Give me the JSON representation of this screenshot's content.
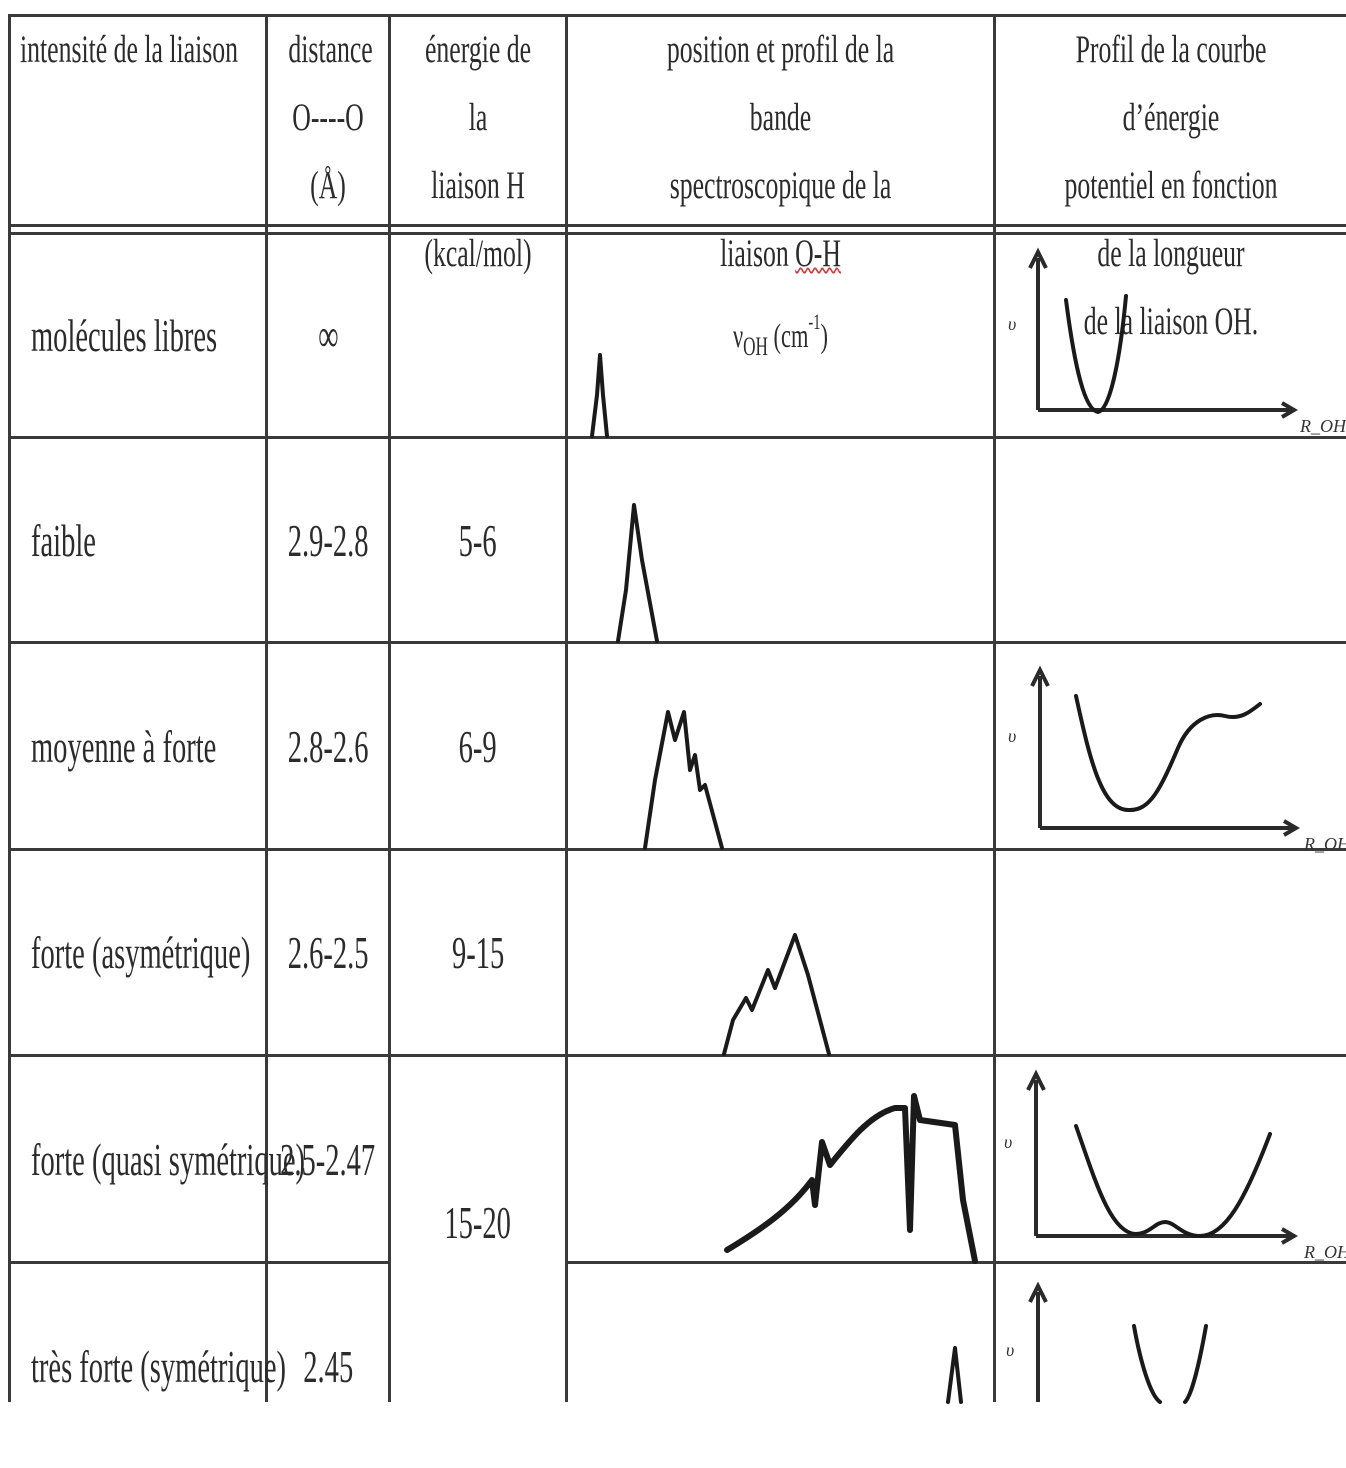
{
  "headers": {
    "intensity": "intensité de la liaison",
    "distance": [
      "distance",
      "O----O",
      "(Å)"
    ],
    "energy": [
      "énergie de la",
      "liaison H",
      "(kcal/mol)"
    ],
    "band": [
      "position et profil de la bande",
      "spectroscopique de la liaison O-H"
    ],
    "band_unit_prefix": "ν",
    "band_unit_sub": "OH",
    "band_unit_mid": " (cm",
    "band_unit_sup": "-1",
    "band_unit_end": ")",
    "potential": [
      "Profil de la courbe d’énergie",
      "potentiel en fonction de la longueur",
      "de la liaison OH."
    ]
  },
  "axis_labels": {
    "y": "υ",
    "x": "R_OH"
  },
  "rows": [
    {
      "intensity": "molécules libres",
      "distance": "∞",
      "energy": ""
    },
    {
      "intensity": "faible",
      "distance": "2.9-2.8",
      "energy": "5-6"
    },
    {
      "intensity": "moyenne à forte",
      "distance": "2.8-2.6",
      "energy": "6-9"
    },
    {
      "intensity": "forte (asymétrique)",
      "distance": "2.6-2.5",
      "energy": "9-15"
    },
    {
      "intensity": "forte (quasi symétrique)",
      "distance": "2.5-2.47",
      "energy": "15-20"
    },
    {
      "intensity": "très forte (symétrique)",
      "distance": "2.45",
      "energy": ""
    }
  ]
}
